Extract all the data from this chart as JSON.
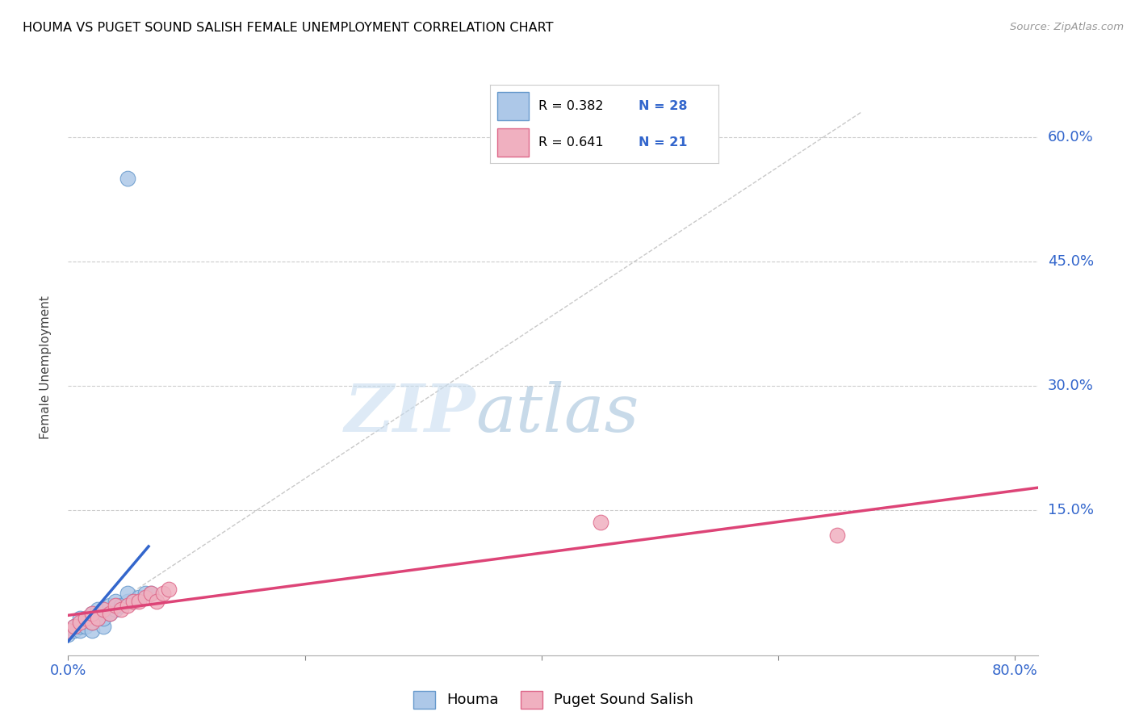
{
  "title": "HOUMA VS PUGET SOUND SALISH FEMALE UNEMPLOYMENT CORRELATION CHART",
  "source": "Source: ZipAtlas.com",
  "ylabel": "Female Unemployment",
  "ytick_labels": [
    "60.0%",
    "45.0%",
    "30.0%",
    "15.0%"
  ],
  "ytick_values": [
    0.6,
    0.45,
    0.3,
    0.15
  ],
  "xlim": [
    0.0,
    0.82
  ],
  "ylim": [
    -0.025,
    0.67
  ],
  "houma_color": "#adc8e8",
  "houma_edge_color": "#6699cc",
  "puget_color": "#f0b0c0",
  "puget_edge_color": "#dd6688",
  "houma_line_color": "#3366cc",
  "puget_line_color": "#dd4477",
  "dashed_line_color": "#bbbbbb",
  "watermark_zip": "ZIP",
  "watermark_atlas": "atlas",
  "houma_x": [
    0.0,
    0.005,
    0.005,
    0.01,
    0.01,
    0.01,
    0.015,
    0.015,
    0.02,
    0.02,
    0.02,
    0.025,
    0.025,
    0.03,
    0.03,
    0.03,
    0.035,
    0.035,
    0.04,
    0.04,
    0.045,
    0.05,
    0.05,
    0.055,
    0.06,
    0.065,
    0.07,
    0.05
  ],
  "houma_y": [
    0.0,
    0.005,
    0.01,
    0.005,
    0.01,
    0.02,
    0.01,
    0.02,
    0.005,
    0.015,
    0.025,
    0.02,
    0.03,
    0.01,
    0.02,
    0.03,
    0.025,
    0.035,
    0.03,
    0.04,
    0.035,
    0.04,
    0.05,
    0.04,
    0.045,
    0.05,
    0.05,
    0.55
  ],
  "puget_x": [
    0.0,
    0.005,
    0.01,
    0.015,
    0.02,
    0.02,
    0.025,
    0.03,
    0.035,
    0.04,
    0.045,
    0.05,
    0.055,
    0.06,
    0.065,
    0.07,
    0.075,
    0.08,
    0.085,
    0.45,
    0.65
  ],
  "puget_y": [
    0.005,
    0.01,
    0.015,
    0.02,
    0.015,
    0.025,
    0.02,
    0.03,
    0.025,
    0.035,
    0.03,
    0.035,
    0.04,
    0.04,
    0.045,
    0.05,
    0.04,
    0.05,
    0.055,
    0.135,
    0.12
  ],
  "legend_r_color": "#3366cc",
  "legend_n_color": "#3366cc"
}
